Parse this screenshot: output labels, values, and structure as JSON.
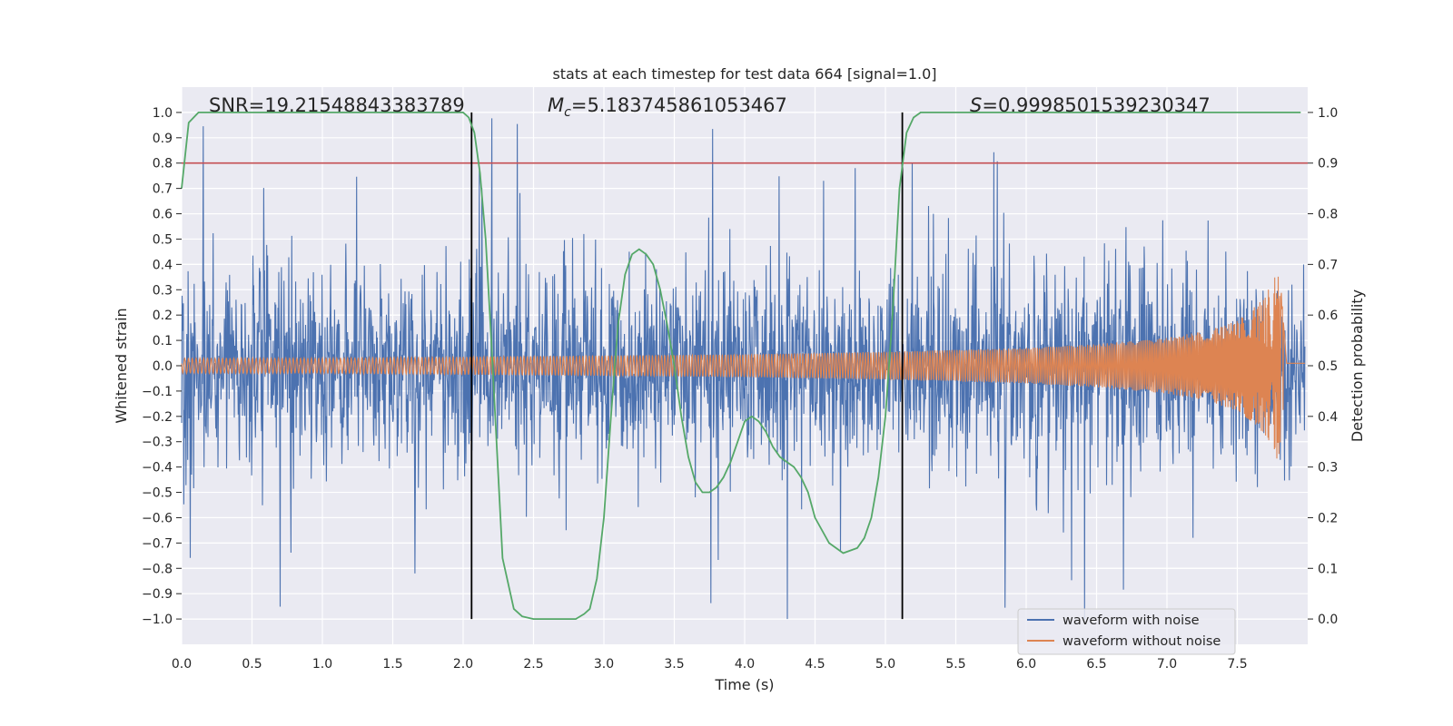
{
  "chart_data": {
    "type": "line",
    "title": "stats at each timestep for test data 664 [signal=1.0]",
    "xlabel": "Time (s)",
    "ylabel": "Whitened strain",
    "y2label": "Detection probability",
    "xlim": [
      0.0,
      8.0
    ],
    "ylim": [
      -1.1,
      1.1
    ],
    "y2lim": [
      -0.05,
      1.05
    ],
    "xticks": [
      "0.0",
      "0.5",
      "1.0",
      "1.5",
      "2.0",
      "2.5",
      "3.0",
      "3.5",
      "4.0",
      "4.5",
      "5.0",
      "5.5",
      "6.0",
      "6.5",
      "7.0",
      "7.5"
    ],
    "yticks": [
      "1.0",
      "0.9",
      "0.8",
      "0.7",
      "0.6",
      "0.5",
      "0.4",
      "0.3",
      "0.2",
      "0.1",
      "0.0",
      "−0.1",
      "−0.2",
      "−0.3",
      "−0.4",
      "−0.5",
      "−0.6",
      "−0.7",
      "−0.8",
      "−0.9",
      "−1.0"
    ],
    "y2ticks": [
      "1.0",
      "0.9",
      "0.8",
      "0.7",
      "0.6",
      "0.5",
      "0.4",
      "0.3",
      "0.2",
      "0.1",
      "0.0"
    ],
    "annotations": {
      "snr": {
        "label": "SNR",
        "value": "19.21548843383789"
      },
      "mc": {
        "label": "M",
        "subscript": "c",
        "value": "5.183745861053467"
      },
      "s": {
        "label": "S",
        "value": "0.9998501539230347"
      }
    },
    "threshold": {
      "value": 0.9,
      "axis": "y2",
      "color": "#c44e52"
    },
    "vlines": [
      {
        "x": 2.06,
        "color": "#000000"
      },
      {
        "x": 5.12,
        "color": "#000000"
      }
    ],
    "grid": true,
    "legend": {
      "position": "bottom-right"
    },
    "series": [
      {
        "name": "waveform with noise",
        "color": "#4c72b0",
        "kind": "noise",
        "base_amplitude": 0.2,
        "peak_range": [
          -1.0,
          1.0
        ]
      },
      {
        "name": "waveform without noise",
        "color": "#dd8452",
        "kind": "chirp",
        "x": [
          0.0,
          1.0,
          2.0,
          3.0,
          4.0,
          5.0,
          6.0,
          6.5,
          7.0,
          7.3,
          7.5,
          7.6,
          7.7,
          7.75,
          7.8,
          7.85,
          7.95
        ],
        "envelope": [
          0.03,
          0.03,
          0.035,
          0.04,
          0.045,
          0.055,
          0.07,
          0.085,
          0.11,
          0.14,
          0.18,
          0.22,
          0.28,
          0.33,
          0.39,
          0.01,
          0.01
        ]
      },
      {
        "name": "detection probability",
        "color": "#55a868",
        "axis": "y2",
        "kind": "line",
        "x": [
          0.0,
          0.05,
          0.12,
          0.3,
          1.0,
          1.5,
          2.0,
          2.04,
          2.08,
          2.12,
          2.16,
          2.2,
          2.28,
          2.36,
          2.42,
          2.5,
          2.8,
          2.86,
          2.9,
          2.95,
          3.0,
          3.05,
          3.1,
          3.15,
          3.2,
          3.25,
          3.3,
          3.35,
          3.4,
          3.45,
          3.5,
          3.55,
          3.6,
          3.65,
          3.7,
          3.75,
          3.8,
          3.85,
          3.9,
          3.95,
          4.0,
          4.05,
          4.1,
          4.15,
          4.2,
          4.25,
          4.3,
          4.35,
          4.4,
          4.45,
          4.5,
          4.6,
          4.7,
          4.8,
          4.85,
          4.9,
          4.95,
          5.0,
          5.05,
          5.1,
          5.15,
          5.2,
          5.25,
          5.3,
          5.4,
          5.6,
          7.95
        ],
        "y": [
          0.85,
          0.98,
          1.0,
          1.0,
          1.0,
          1.0,
          1.0,
          0.99,
          0.96,
          0.88,
          0.75,
          0.55,
          0.12,
          0.02,
          0.005,
          0.0,
          0.0,
          0.01,
          0.02,
          0.08,
          0.2,
          0.4,
          0.58,
          0.68,
          0.72,
          0.73,
          0.72,
          0.7,
          0.65,
          0.58,
          0.5,
          0.4,
          0.32,
          0.27,
          0.25,
          0.25,
          0.26,
          0.28,
          0.31,
          0.35,
          0.39,
          0.4,
          0.39,
          0.37,
          0.34,
          0.32,
          0.31,
          0.3,
          0.28,
          0.25,
          0.2,
          0.15,
          0.13,
          0.14,
          0.16,
          0.2,
          0.28,
          0.4,
          0.6,
          0.85,
          0.96,
          0.99,
          1.0,
          1.0,
          1.0,
          1.0,
          1.0
        ]
      }
    ]
  }
}
